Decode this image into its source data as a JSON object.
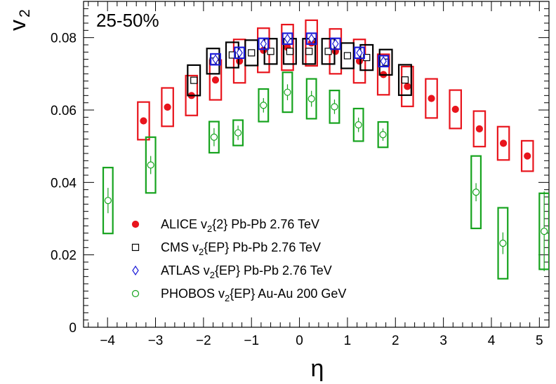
{
  "chart_data": {
    "type": "scatter",
    "title": "",
    "annotation": "25-50%",
    "xlabel": "η",
    "ylabel_main": "v",
    "ylabel_sub": "2",
    "xlim": [
      -4.5,
      5.2
    ],
    "ylim": [
      0,
      0.09
    ],
    "xticks": [
      -4,
      -3,
      -2,
      -1,
      0,
      1,
      2,
      3,
      4,
      5
    ],
    "xtick_labels": [
      "−4",
      "−3",
      "−2",
      "−1",
      "0",
      "1",
      "2",
      "3",
      "4",
      "5"
    ],
    "yticks": [
      0,
      0.02,
      0.04,
      0.06,
      0.08
    ],
    "ytick_labels": [
      "0",
      "0.02",
      "0.04",
      "0.06",
      "0.08"
    ],
    "grid": false,
    "legend_position": "bottom-left",
    "series": [
      {
        "key": "alice",
        "legend_pre": "ALICE v",
        "legend_sub": "2",
        "legend_post": "{2} Pb-Pb 2.76 TeV",
        "color": "#e8141c",
        "marker": "filled-circle",
        "sys_box_half_width": 0.12,
        "x": [
          -3.25,
          -2.75,
          -2.25,
          -1.75,
          -1.25,
          -0.75,
          -0.25,
          0.25,
          0.75,
          1.25,
          1.75,
          2.25,
          2.75,
          3.25,
          3.75,
          4.25,
          4.75
        ],
        "y": [
          0.057,
          0.0608,
          0.064,
          0.0683,
          0.0735,
          0.0765,
          0.0773,
          0.0785,
          0.0762,
          0.0735,
          0.0698,
          0.0665,
          0.0632,
          0.0602,
          0.0548,
          0.0508,
          0.0473
        ],
        "sys": [
          0.0052,
          0.0053,
          0.0055,
          0.0055,
          0.006,
          0.0061,
          0.0063,
          0.0063,
          0.0062,
          0.006,
          0.0056,
          0.0055,
          0.0054,
          0.0053,
          0.0049,
          0.0046,
          0.0042
        ],
        "stat": [
          0.0006,
          0.0006,
          0.0005,
          0.0005,
          0.0005,
          0.0005,
          0.0005,
          0.0005,
          0.0005,
          0.0005,
          0.0005,
          0.0005,
          0.0005,
          0.0006,
          0.0006,
          0.0006,
          0.0007
        ]
      },
      {
        "key": "cms",
        "legend_pre": "CMS v",
        "legend_sub": "2",
        "legend_post": "{EP} Pb-Pb 2.76 TeV",
        "color": "#000000",
        "marker": "open-square",
        "sys_box_half_width": 0.13,
        "x": [
          -2.2,
          -1.8,
          -1.4,
          -1.0,
          -0.6,
          -0.2,
          0.2,
          0.6,
          1.0,
          1.4,
          1.8,
          2.2
        ],
        "y": [
          0.0682,
          0.0735,
          0.0752,
          0.0758,
          0.0762,
          0.0762,
          0.0762,
          0.0762,
          0.075,
          0.0745,
          0.0732,
          0.0683
        ],
        "sys": [
          0.0042,
          0.0035,
          0.0035,
          0.0035,
          0.0035,
          0.0035,
          0.0035,
          0.0035,
          0.0035,
          0.0035,
          0.0035,
          0.0042
        ],
        "stat": [
          0.0004,
          0.0004,
          0.0004,
          0.0004,
          0.0004,
          0.0004,
          0.0004,
          0.0004,
          0.0004,
          0.0004,
          0.0004,
          0.0004
        ]
      },
      {
        "key": "atlas",
        "legend_pre": "ATLAS v",
        "legend_sub": "2",
        "legend_post": "{EP} Pb-Pb 2.76 TeV",
        "color": "#1c1cd8",
        "marker": "open-diamond",
        "sys_box_half_width": 0.1,
        "x": [
          -1.75,
          -1.25,
          -0.75,
          -0.25,
          0.25,
          0.75,
          1.25,
          1.75
        ],
        "y": [
          0.074,
          0.0758,
          0.0783,
          0.0797,
          0.0797,
          0.0783,
          0.0758,
          0.0735
        ],
        "sys": [
          0.0015,
          0.0015,
          0.0015,
          0.0015,
          0.0015,
          0.0015,
          0.0015,
          0.0015
        ],
        "stat": [
          0.0003,
          0.0003,
          0.0003,
          0.0003,
          0.0003,
          0.0003,
          0.0003,
          0.0003
        ]
      },
      {
        "key": "phobos",
        "legend_pre": "PHOBOS v",
        "legend_sub": "2",
        "legend_post": "{EP} Au-Au 200 GeV",
        "color": "#16a31e",
        "marker": "open-circle",
        "sys_box_half_width": 0.1,
        "x": [
          -3.99,
          -3.1,
          -1.78,
          -1.28,
          -0.75,
          -0.25,
          0.25,
          0.73,
          1.23,
          1.74,
          3.68,
          4.24,
          5.1
        ],
        "y": [
          0.035,
          0.0448,
          0.0525,
          0.0537,
          0.0613,
          0.0649,
          0.0631,
          0.0609,
          0.0559,
          0.0532,
          0.0373,
          0.0232,
          0.0265
        ],
        "sys": [
          0.0091,
          0.0077,
          0.0043,
          0.0035,
          0.0045,
          0.0055,
          0.0055,
          0.0045,
          0.0045,
          0.0035,
          0.01,
          0.0098,
          0.0105
        ],
        "stat": [
          0.0035,
          0.0025,
          0.0025,
          0.002,
          0.002,
          0.0022,
          0.0022,
          0.002,
          0.002,
          0.0017,
          0.0025,
          0.003,
          0.011
        ]
      }
    ]
  }
}
